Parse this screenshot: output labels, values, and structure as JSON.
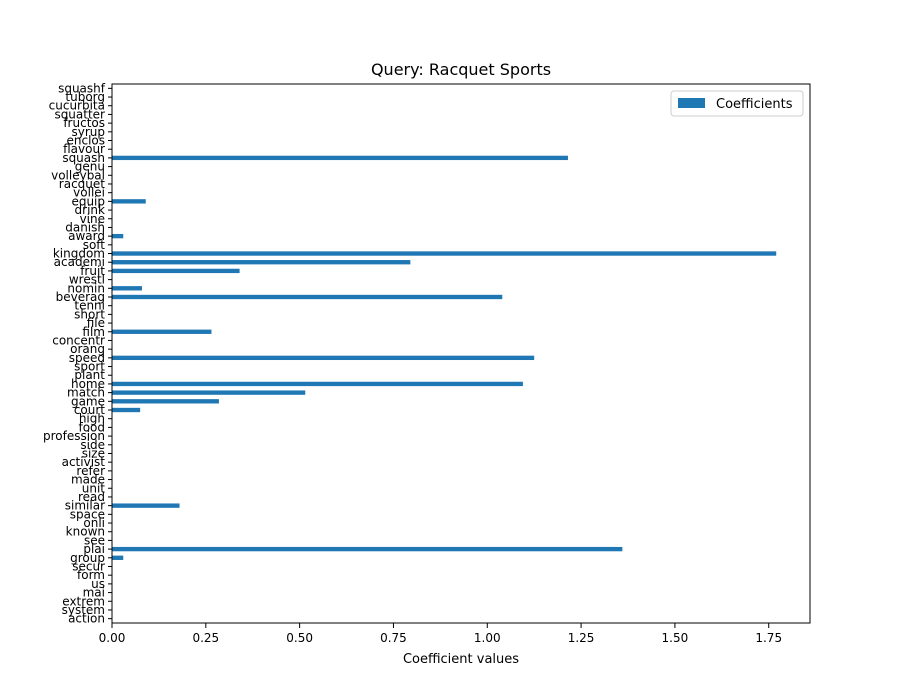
{
  "chart_data": {
    "type": "bar",
    "orientation": "horizontal",
    "title": "Query: Racquet Sports",
    "xlabel": "Coefficient values",
    "ylabel": "",
    "xlim": [
      0,
      1.86
    ],
    "xticks": [
      "0.00",
      "0.25",
      "0.50",
      "0.75",
      "1.00",
      "1.25",
      "1.50",
      "1.75"
    ],
    "xtick_values": [
      0,
      0.25,
      0.5,
      0.75,
      1.0,
      1.25,
      1.5,
      1.75
    ],
    "grid": false,
    "legend": {
      "placement": "top-right",
      "entries": [
        "Coefficients"
      ]
    },
    "bar_color": "#1f77b4",
    "series": [
      {
        "name": "Coefficients",
        "categories": [
          "action",
          "system",
          "extrem",
          "mai",
          "us",
          "form",
          "secur",
          "group",
          "plai",
          "see",
          "known",
          "onli",
          "space",
          "similar",
          "read",
          "unit",
          "made",
          "refer",
          "activist",
          "size",
          "side",
          "profession",
          "food",
          "high",
          "court",
          "game",
          "match",
          "home",
          "plant",
          "sport",
          "speed",
          "orang",
          "concentr",
          "film",
          "file",
          "short",
          "tenni",
          "beverag",
          "nomin",
          "wrestl",
          "fruit",
          "academi",
          "kingdom",
          "soft",
          "award",
          "danish",
          "vine",
          "drink",
          "equip",
          "vollei",
          "racquet",
          "volleybal",
          "genu",
          "squash",
          "flavour",
          "enclos",
          "syrup",
          "fructos",
          "squatter",
          "cucurbita",
          "tuborg",
          "squashf"
        ],
        "values": [
          0,
          0,
          0,
          0,
          0,
          0,
          0,
          0.03,
          1.36,
          0,
          0,
          0,
          0,
          0.18,
          0,
          0,
          0,
          0,
          0,
          0,
          0,
          0,
          0,
          0,
          0.075,
          0.285,
          0.515,
          1.095,
          0,
          0,
          1.125,
          0,
          0,
          0.265,
          0,
          0,
          0,
          1.04,
          0.08,
          0,
          0.34,
          0.795,
          1.77,
          0,
          0.03,
          0,
          0,
          0,
          0.09,
          0,
          0,
          0,
          0,
          1.215,
          0,
          0,
          0,
          0,
          0,
          0,
          0,
          0
        ]
      }
    ]
  }
}
